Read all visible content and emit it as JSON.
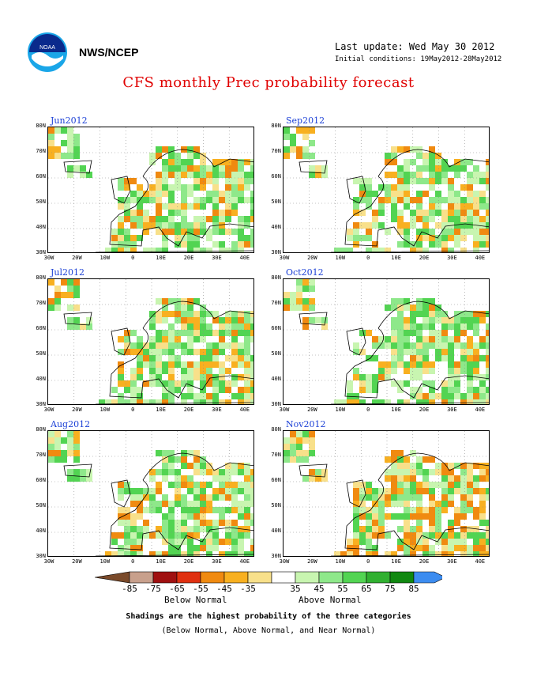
{
  "header": {
    "agency": "NWS/NCEP",
    "last_update": "Last update: Wed May 30 2012",
    "initial_conditions": "Initial conditions: 19May2012-28May2012",
    "title": "CFS monthly Prec probability forecast"
  },
  "axes": {
    "lat_labels": [
      "80N",
      "70N",
      "60N",
      "50N",
      "40N",
      "30N"
    ],
    "lon_labels": [
      "30W",
      "20W",
      "10W",
      "0",
      "10E",
      "20E",
      "30E",
      "40E"
    ]
  },
  "panels": [
    {
      "label": "Jun2012",
      "seed": 11,
      "green": 0.55,
      "orange": 0.22
    },
    {
      "label": "Sep2012",
      "seed": 23,
      "green": 0.45,
      "orange": 0.25
    },
    {
      "label": "Jul2012",
      "seed": 37,
      "green": 0.5,
      "orange": 0.3
    },
    {
      "label": "Oct2012",
      "seed": 41,
      "green": 0.58,
      "orange": 0.18
    },
    {
      "label": "Aug2012",
      "seed": 53,
      "green": 0.52,
      "orange": 0.28
    },
    {
      "label": "Nov2012",
      "seed": 67,
      "green": 0.35,
      "orange": 0.45
    }
  ],
  "colorbar": {
    "colors": [
      "#7a4a2a",
      "#c8a08c",
      "#a01010",
      "#e03010",
      "#f08a10",
      "#f8b020",
      "#f8e08a",
      "#ffffff",
      "#c8f5b0",
      "#8ee88a",
      "#52d452",
      "#30b030",
      "#108810",
      "#3c8cf0"
    ],
    "labels": [
      "-85",
      "-75",
      "-65",
      "-55",
      "-45",
      "-35",
      "35",
      "45",
      "55",
      "65",
      "75",
      "85"
    ],
    "below_label": "Below Normal",
    "above_label": "Above Normal"
  },
  "footer": {
    "line1": "Shadings are the highest probability of the three categories",
    "line2": "(Below Normal, Above Normal, and Near Normal)"
  }
}
